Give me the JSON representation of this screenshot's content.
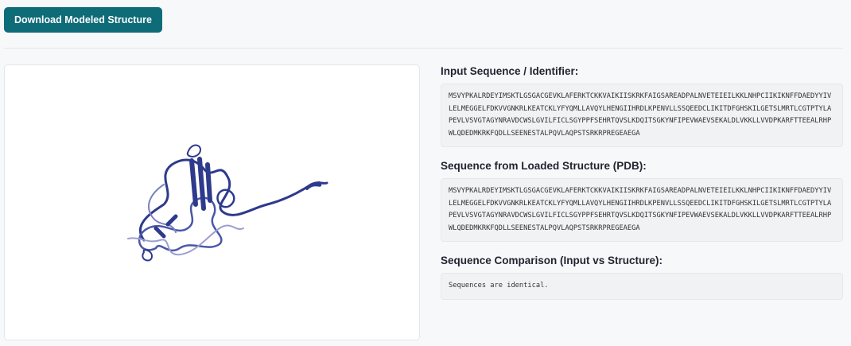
{
  "toolbar": {
    "download_label": "Download Modeled Structure"
  },
  "input_section": {
    "title": "Input Sequence / Identifier:",
    "sequence": "MSVYPKALRDEYIMSKTLGSGACGEVKLAFERKTCKKVAIKIISKRKFAIGSAREADPALNVETEIEILKKLNHPCIIKIKNFFDAEDYYIVLELMEGGELFDKVVGNKRLKEATCKLYFYQMLLAVQYLHENGIIHRDLKPENVLLSSQEEDCLIKITDFGHSKILGETSLMRTLCGTPTYLAPEVLVSVGTAGYNRAVDCWSLGVILFICLSGYPPFSEHRTQVSLKDQITSGKYNFIPEVWAEVSEKALDLVKKLLVVDPKARFTTEEALRHPWLQDEDMKRKFQDLLSEENESTALPQVLAQPSTSRKRPREGEAEGA"
  },
  "structure_section": {
    "title": "Sequence from Loaded Structure (PDB):",
    "sequence": "MSVYPKALRDEYIMSKTLGSGACGEVKLAFERKTCKKVAIKIISKRKFAIGSAREADPALNVETEIEILKKLNHPCIIKIKNFFDAEDYYIVLELMEGGELFDKVVGNKRLKEATCKLYFYQMLLAVQYLHENGIIHRDLKPENVLLSSQEEDCLIKITDFGHSKILGETSLMRTLCGTPTYLAPEVLVSVGTAGYNRAVDCWSLGVILFICLSGYPPFSEHRTQVSLKDQITSGKYNFIPEVWAEVSEKALDLVKKLLVVDPKARFTTEEALRHPWLQDEDMKRKFQDLLSEENESTALPQVLAQPSTSRKRPREGEAEGA"
  },
  "comparison_section": {
    "title": "Sequence Comparison (Input vs Structure):",
    "result": "Sequences are identical."
  },
  "colors": {
    "button": "#0e6b78",
    "structure": "#2e3a8c"
  }
}
